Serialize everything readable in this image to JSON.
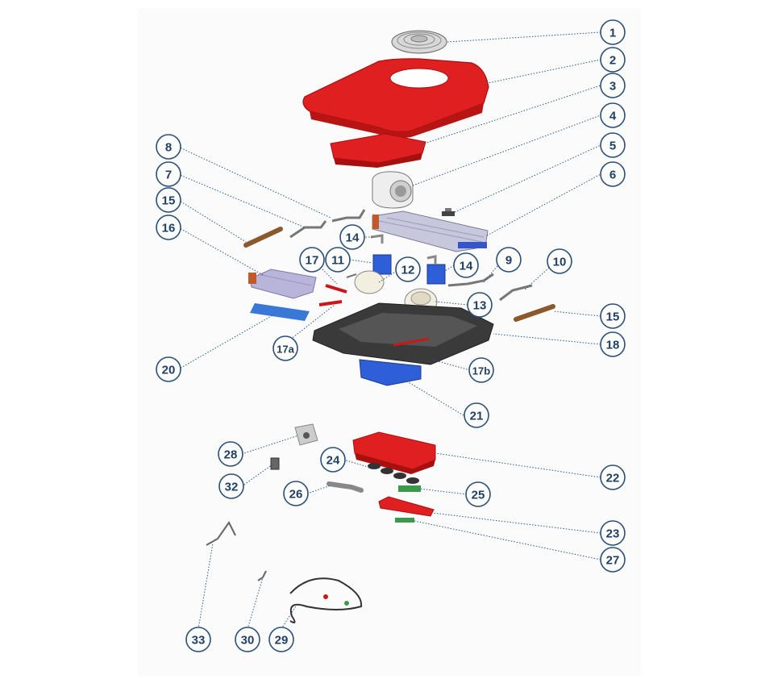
{
  "diagram": {
    "colors": {
      "callout_fill": "#ffffff",
      "callout_stroke": "#2a4f7a",
      "callout_text": "#1f3f63",
      "housing_red": "#e02020",
      "housing_dark_red": "#a81010",
      "base_dark": "#3a3a3a",
      "tray_blue": "#2f5fd8",
      "copper": "#9a6a3a"
    },
    "callouts": [
      {
        "id": "c1",
        "label": "1"
      },
      {
        "id": "c2",
        "label": "2"
      },
      {
        "id": "c3",
        "label": "3"
      },
      {
        "id": "c4",
        "label": "4"
      },
      {
        "id": "c5",
        "label": "5"
      },
      {
        "id": "c6",
        "label": "6"
      },
      {
        "id": "c8",
        "label": "8"
      },
      {
        "id": "c7",
        "label": "7"
      },
      {
        "id": "c15a",
        "label": "15"
      },
      {
        "id": "c16",
        "label": "16"
      },
      {
        "id": "c14a",
        "label": "14"
      },
      {
        "id": "c11",
        "label": "11"
      },
      {
        "id": "c17",
        "label": "17"
      },
      {
        "id": "c12",
        "label": "12"
      },
      {
        "id": "c14b",
        "label": "14"
      },
      {
        "id": "c9",
        "label": "9"
      },
      {
        "id": "c10",
        "label": "10"
      },
      {
        "id": "c13",
        "label": "13"
      },
      {
        "id": "c15b",
        "label": "15"
      },
      {
        "id": "c18",
        "label": "18"
      },
      {
        "id": "c17a",
        "label": "17a"
      },
      {
        "id": "c20",
        "label": "20"
      },
      {
        "id": "c17b",
        "label": "17b"
      },
      {
        "id": "c21",
        "label": "21"
      },
      {
        "id": "c28",
        "label": "28"
      },
      {
        "id": "c24",
        "label": "24"
      },
      {
        "id": "c22",
        "label": "22"
      },
      {
        "id": "c32",
        "label": "32"
      },
      {
        "id": "c26",
        "label": "26"
      },
      {
        "id": "c25",
        "label": "25"
      },
      {
        "id": "c23",
        "label": "23"
      },
      {
        "id": "c27",
        "label": "27"
      },
      {
        "id": "c33",
        "label": "33"
      },
      {
        "id": "c30",
        "label": "30"
      },
      {
        "id": "c29",
        "label": "29"
      }
    ]
  }
}
